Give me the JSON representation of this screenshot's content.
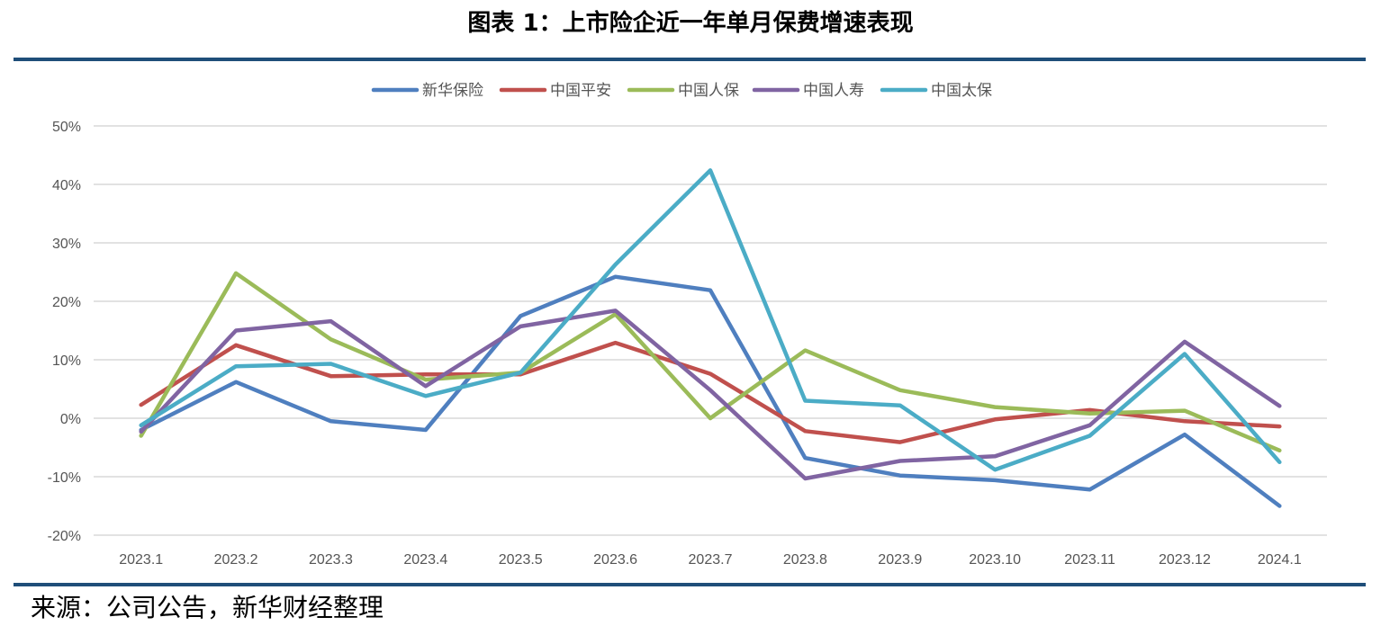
{
  "title": "图表 1：上市险企近一年单月保费增速表现",
  "source": "来源：公司公告，新华财经整理",
  "chart_data": {
    "type": "line",
    "categories": [
      "2023.1",
      "2023.2",
      "2023.3",
      "2023.4",
      "2023.5",
      "2023.6",
      "2023.7",
      "2023.8",
      "2023.9",
      "2023.10",
      "2023.11",
      "2023.12",
      "2024.1"
    ],
    "ylim": [
      -20,
      50
    ],
    "yticks": [
      -20,
      -10,
      0,
      10,
      20,
      30,
      40,
      50
    ],
    "ytick_labels": [
      "-20%",
      "-10%",
      "0%",
      "10%",
      "20%",
      "30%",
      "40%",
      "50%"
    ],
    "grid": true,
    "legend": "top-center",
    "series": [
      {
        "name": "新华保险",
        "color": "#4f7fbf",
        "values": [
          -2.0,
          6.2,
          -0.5,
          -2.0,
          17.5,
          24.2,
          21.9,
          -6.8,
          -9.8,
          -10.6,
          -12.2,
          -2.8,
          -15.0
        ]
      },
      {
        "name": "中国平安",
        "color": "#c0504d",
        "values": [
          2.3,
          12.5,
          7.2,
          7.5,
          7.5,
          12.9,
          7.6,
          -2.2,
          -4.1,
          -0.2,
          1.4,
          -0.5,
          -1.4
        ]
      },
      {
        "name": "中国人保",
        "color": "#9bbb59",
        "values": [
          -3.0,
          24.8,
          13.5,
          6.6,
          7.8,
          17.8,
          0.0,
          11.6,
          4.8,
          1.9,
          0.8,
          1.3,
          -5.5
        ]
      },
      {
        "name": "中国人寿",
        "color": "#8064a2",
        "values": [
          -2.3,
          15.0,
          16.6,
          5.5,
          15.7,
          18.4,
          4.8,
          -10.3,
          -7.3,
          -6.5,
          -1.2,
          13.1,
          2.1
        ]
      },
      {
        "name": "中国太保",
        "color": "#4bacc6",
        "values": [
          -1.2,
          8.9,
          9.3,
          3.8,
          7.8,
          26.3,
          42.4,
          3.0,
          2.2,
          -8.8,
          -3.0,
          11.0,
          -7.5
        ]
      }
    ]
  }
}
